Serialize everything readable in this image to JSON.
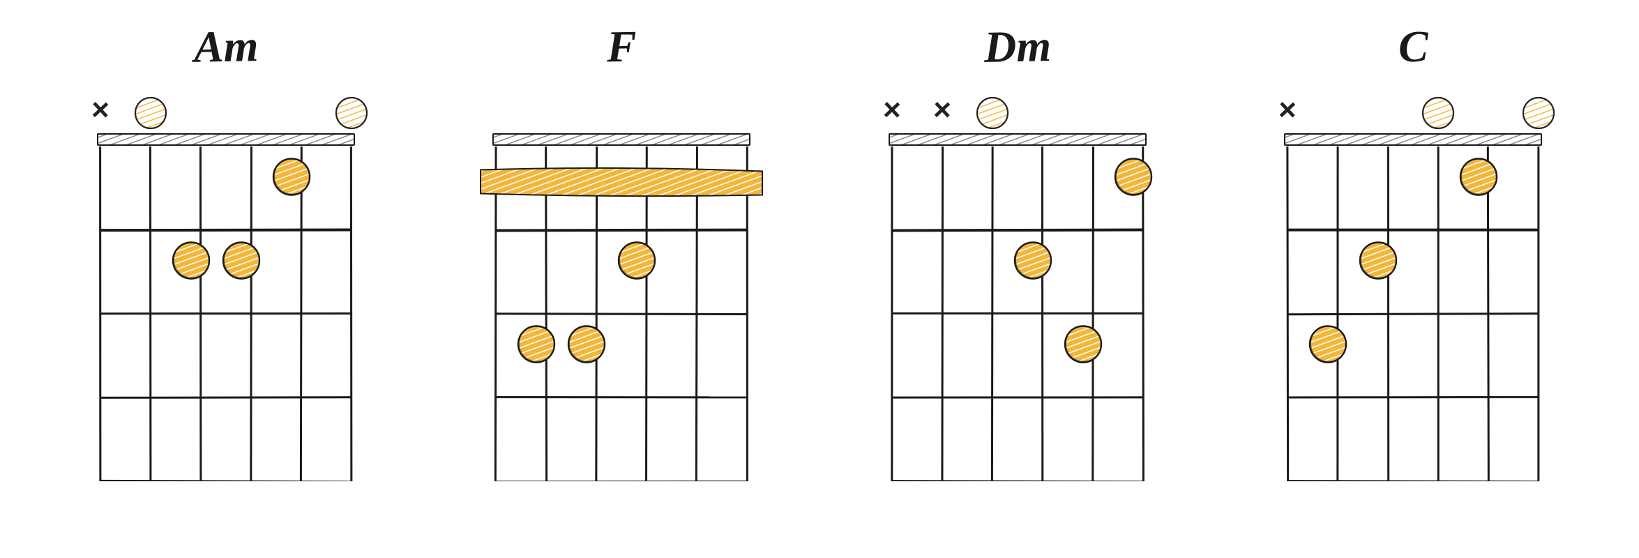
{
  "layout": {
    "num_strings": 6,
    "num_frets": 4,
    "string_spacing": 72,
    "fret_spacing": 120,
    "left_margin": 10,
    "dot_radius": 26,
    "open_radius": 22,
    "line_color": "#1a1a1a",
    "fill_color": "#f2b63b",
    "hatch_color": "#ffffff",
    "background": "#ffffff"
  },
  "chords": [
    {
      "name": "Am",
      "markers": [
        "x",
        "o",
        null,
        null,
        null,
        "o"
      ],
      "dots": [
        {
          "string": 4,
          "fret": 2
        },
        {
          "string": 3,
          "fret": 2
        },
        {
          "string": 2,
          "fret": 1
        }
      ],
      "barre": null
    },
    {
      "name": "F",
      "markers": [
        null,
        null,
        null,
        null,
        null,
        null
      ],
      "dots": [
        {
          "string": 5,
          "fret": 3
        },
        {
          "string": 4,
          "fret": 3
        },
        {
          "string": 3,
          "fret": 2
        }
      ],
      "barre": {
        "fret": 1,
        "from_string": 6,
        "to_string": 1
      }
    },
    {
      "name": "Dm",
      "markers": [
        "x",
        "x",
        "o",
        null,
        null,
        null
      ],
      "dots": [
        {
          "string": 3,
          "fret": 2
        },
        {
          "string": 2,
          "fret": 3
        },
        {
          "string": 1,
          "fret": 1
        }
      ],
      "barre": null
    },
    {
      "name": "C",
      "markers": [
        "x",
        null,
        null,
        "o",
        null,
        "o"
      ],
      "dots": [
        {
          "string": 5,
          "fret": 3
        },
        {
          "string": 4,
          "fret": 2
        },
        {
          "string": 2,
          "fret": 1
        }
      ],
      "barre": null
    }
  ]
}
